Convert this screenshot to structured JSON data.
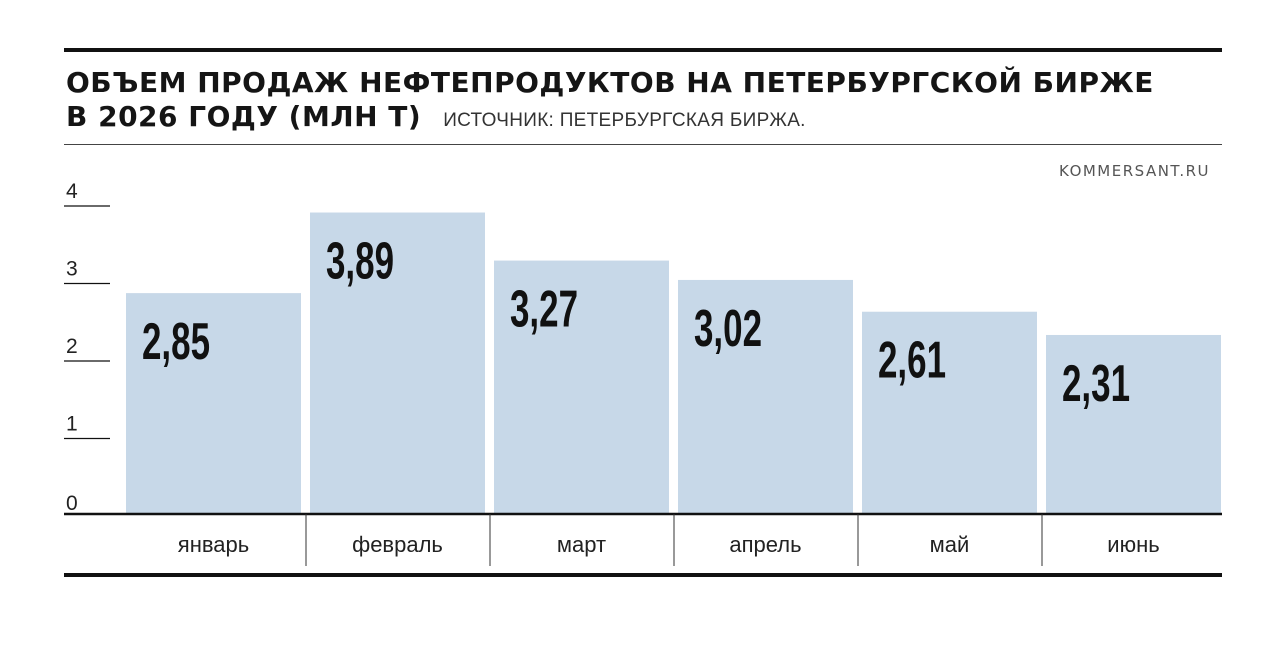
{
  "header": {
    "title_line1": "ОБЪЕМ ПРОДАЖ НЕФТЕПРОДУКТОВ НА ПЕТЕРБУРГСКОЙ БИРЖЕ",
    "title_line2": "В 2026 ГОДУ (МЛН Т)",
    "source": "ИСТОЧНИК: ПЕТЕРБУРГСКАЯ БИРЖА.",
    "credit": "KOMMERSANT.RU"
  },
  "chart_data": {
    "type": "bar",
    "title": "ОБЪЕМ ПРОДАЖ НЕФТЕПРОДУКТОВ НА ПЕТЕРБУРГСКОЙ БИРЖЕ В 2026 ГОДУ (МЛН Т)",
    "categories": [
      "январь",
      "февраль",
      "март",
      "апрель",
      "май",
      "июнь"
    ],
    "values": [
      2.85,
      3.89,
      3.27,
      3.02,
      2.61,
      2.31
    ],
    "value_labels": [
      "2,85",
      "3,89",
      "3,27",
      "3,02",
      "2,61",
      "2,31"
    ],
    "yticks": [
      "0",
      "1",
      "2",
      "3",
      "4"
    ],
    "ylim": [
      0,
      4
    ],
    "grid": false,
    "colors": {
      "bar": "#c7d8e8",
      "axis": "#111111",
      "text": "#111111"
    }
  }
}
